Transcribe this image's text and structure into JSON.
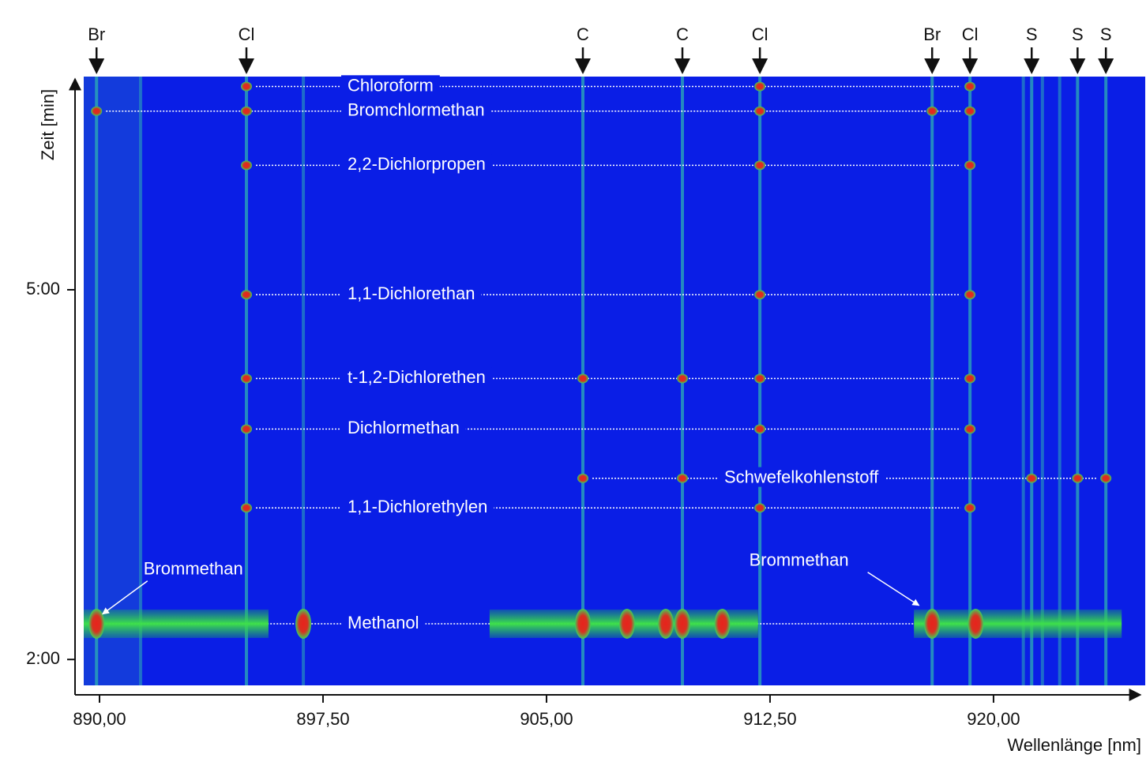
{
  "chart_data": {
    "type": "spectrogram",
    "x_label": "Wellenlänge [nm]",
    "y_label": "Zeit [min]",
    "xlim": [
      889.47,
      925.09
    ],
    "ylim": [
      1.79,
      6.73
    ],
    "xticks": [
      {
        "value": 890,
        "label": "890,00"
      },
      {
        "value": 897.5,
        "label": "897,50"
      },
      {
        "value": 905,
        "label": "905,00"
      },
      {
        "value": 912.5,
        "label": "912,50"
      },
      {
        "value": 920,
        "label": "920,00"
      }
    ],
    "yticks": [
      {
        "value": 2,
        "label": "2:00"
      },
      {
        "value": 5,
        "label": "5:00"
      }
    ],
    "background_color": "#0a1ee6",
    "elements": [
      {
        "label": "Br",
        "wavelength": 889.9
      },
      {
        "label": "Cl",
        "wavelength": 894.93
      },
      {
        "label": "C",
        "wavelength": 906.22
      },
      {
        "label": "C",
        "wavelength": 909.56
      },
      {
        "label": "Cl",
        "wavelength": 912.16
      },
      {
        "label": "Br",
        "wavelength": 917.94
      },
      {
        "label": "Cl",
        "wavelength": 919.21
      },
      {
        "label": "S",
        "wavelength": 921.28
      },
      {
        "label": "S",
        "wavelength": 922.82
      },
      {
        "label": "S",
        "wavelength": 923.77
      }
    ],
    "background_lines": [
      891.38,
      896.84,
      921.0,
      921.64,
      922.22
    ],
    "compounds": [
      {
        "name": "Chloroform",
        "time": 6.65,
        "peaks": [
          894.93,
          912.16,
          919.21
        ]
      },
      {
        "name": "Bromchlormethan",
        "time": 6.45,
        "peaks": [
          889.9,
          894.93,
          912.16,
          917.94,
          919.21
        ]
      },
      {
        "name": "2,2-Dichlorpropen",
        "time": 6.01,
        "peaks": [
          894.93,
          912.16,
          919.21
        ]
      },
      {
        "name": "1,1-Dichlorethan",
        "time": 4.96,
        "peaks": [
          894.93,
          912.16,
          919.21
        ]
      },
      {
        "name": "t-1,2-Dichlorethen",
        "time": 4.28,
        "peaks": [
          894.93,
          906.22,
          909.56,
          912.16,
          919.21
        ]
      },
      {
        "name": "Dichlormethan",
        "time": 3.87,
        "peaks": [
          894.93,
          912.16,
          919.21
        ]
      },
      {
        "name": "Schwefelkohlenstoff",
        "time": 3.47,
        "peaks": [
          906.22,
          909.56,
          921.28,
          922.82,
          923.77
        ]
      },
      {
        "name": "1,1-Dichlorethylen",
        "time": 3.23,
        "peaks": [
          894.93,
          912.16,
          919.21
        ]
      },
      {
        "name": "Methanol",
        "time": 2.29,
        "peaks": [
          889.9,
          896.84,
          906.22,
          907.7,
          909.0,
          909.56,
          910.9,
          917.94,
          919.4
        ],
        "bands": [
          [
            889.47,
            895.67
          ],
          [
            903.09,
            912.1
          ],
          [
            917.33,
            924.3
          ]
        ]
      }
    ],
    "annotations": [
      {
        "text": "Brommethan",
        "wavelength": 890.1,
        "time": 2.33
      },
      {
        "text": "Brommethan",
        "wavelength": 917.5,
        "time": 2.4
      }
    ]
  }
}
